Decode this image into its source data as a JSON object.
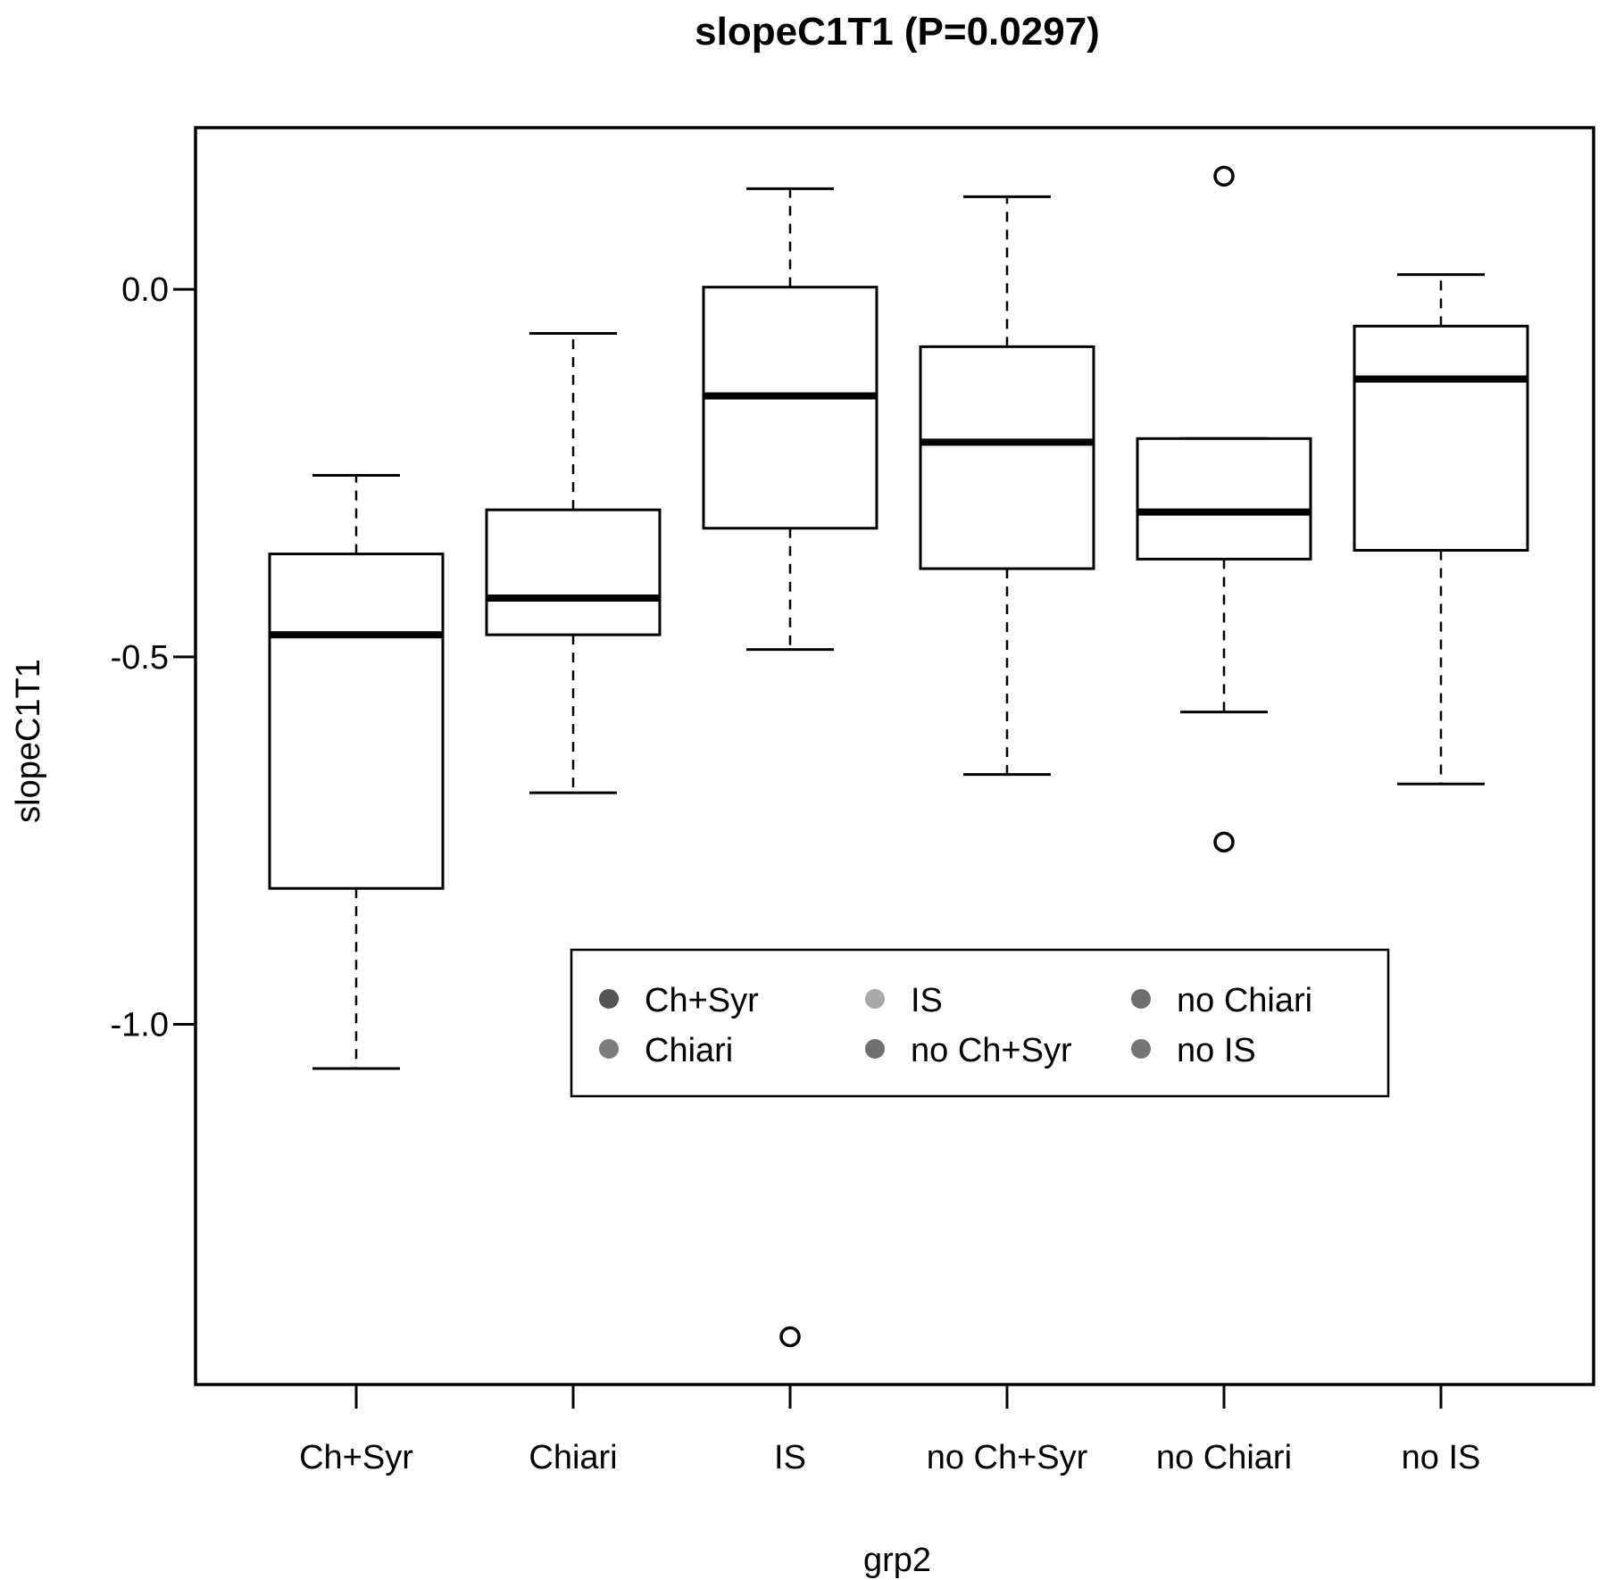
{
  "chart_data": {
    "type": "boxplot",
    "title": "slopeC1T1 (P=0.0297)",
    "xlabel": "grp2",
    "ylabel": "slopeC1T1",
    "ylim": [
      -1.49,
      0.22
    ],
    "yticks": [
      0.0,
      -0.5,
      -1.0
    ],
    "ytick_labels": [
      "0.0",
      "-0.5",
      "-1.0"
    ],
    "categories": [
      "Ch+Syr",
      "Chiari",
      "IS",
      "no Ch+Syr",
      "no Chiari",
      "no IS"
    ],
    "boxes": [
      {
        "category": "Ch+Syr",
        "whisker_low": -1.06,
        "q1": -0.815,
        "median": -0.47,
        "q3": -0.36,
        "whisker_high": -0.253,
        "outliers": []
      },
      {
        "category": "Chiari",
        "whisker_low": -0.685,
        "q1": -0.47,
        "median": -0.42,
        "q3": -0.3,
        "whisker_high": -0.06,
        "outliers": []
      },
      {
        "category": "IS",
        "whisker_low": -0.49,
        "q1": -0.325,
        "median": -0.145,
        "q3": 0.003,
        "whisker_high": 0.137,
        "outliers": [
          -1.425
        ]
      },
      {
        "category": "no Ch+Syr",
        "whisker_low": -0.66,
        "q1": -0.38,
        "median": -0.208,
        "q3": -0.078,
        "whisker_high": 0.126,
        "outliers": []
      },
      {
        "category": "no Chiari",
        "whisker_low": -0.575,
        "q1": -0.367,
        "median": -0.303,
        "q3": -0.203,
        "whisker_high": -0.203,
        "outliers": [
          0.154,
          -0.752
        ]
      },
      {
        "category": "no IS",
        "whisker_low": -0.673,
        "q1": -0.355,
        "median": -0.122,
        "q3": -0.05,
        "whisker_high": 0.02,
        "outliers": []
      }
    ],
    "legend": {
      "position": "center",
      "entries": [
        {
          "label": "Ch+Syr",
          "color": "#555555"
        },
        {
          "label": "IS",
          "color": "#a8a8a8"
        },
        {
          "label": "no Chiari",
          "color": "#6e6e6e"
        },
        {
          "label": "Chiari",
          "color": "#7c7c7c"
        },
        {
          "label": "no Ch+Syr",
          "color": "#707070"
        },
        {
          "label": "no IS",
          "color": "#767676"
        }
      ]
    }
  }
}
